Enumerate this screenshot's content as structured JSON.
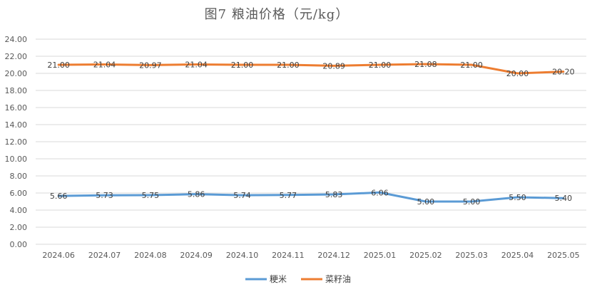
{
  "chart_data": {
    "type": "line",
    "title": "图7 粮油价格（元/kg）",
    "categories": [
      "2024.06",
      "2024.07",
      "2024.08",
      "2024.09",
      "2024.10",
      "2024.11",
      "2024.12",
      "2025.01",
      "2025.02",
      "2025.03",
      "2025.04",
      "2025.05"
    ],
    "series": [
      {
        "name": "粳米",
        "color": "#5b9bd5",
        "values": [
          5.66,
          5.73,
          5.75,
          5.86,
          5.74,
          5.77,
          5.83,
          6.06,
          5.0,
          5.0,
          5.5,
          5.4
        ],
        "labels": [
          "5.66",
          "5.73",
          "5.75",
          "5.86",
          "5.74",
          "5.77",
          "5.83",
          "6.06",
          "5.00",
          "5.00",
          "5.50",
          "5.40"
        ]
      },
      {
        "name": "菜籽油",
        "color": "#ed7d31",
        "values": [
          21.0,
          21.04,
          20.97,
          21.04,
          21.0,
          21.0,
          20.89,
          21.0,
          21.08,
          21.0,
          20.0,
          20.2
        ],
        "labels": [
          "21.00",
          "21.04",
          "20.97",
          "21.04",
          "21.00",
          "21.00",
          "20.89",
          "21.00",
          "21.08",
          "21.00",
          "20.00",
          "20.20"
        ]
      }
    ],
    "ylim": [
      0,
      24
    ],
    "yticks": [
      "0.00",
      "2.00",
      "4.00",
      "6.00",
      "8.00",
      "10.00",
      "12.00",
      "14.00",
      "16.00",
      "18.00",
      "20.00",
      "22.00",
      "24.00"
    ],
    "grid": true,
    "legend_position": "bottom"
  }
}
